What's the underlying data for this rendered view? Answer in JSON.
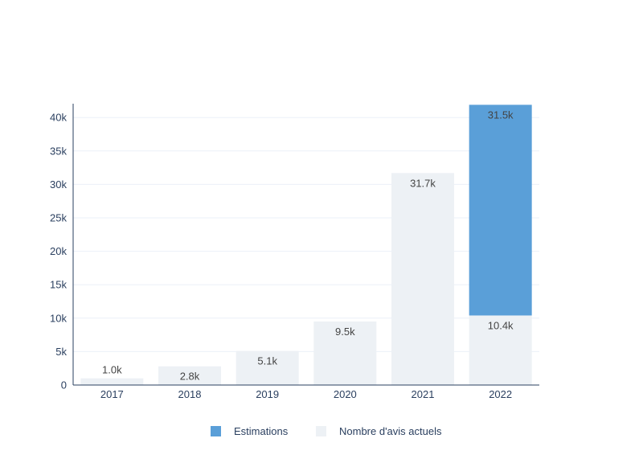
{
  "chart_data": {
    "type": "bar",
    "stacked": true,
    "categories": [
      "2017",
      "2018",
      "2019",
      "2020",
      "2021",
      "2022"
    ],
    "series": [
      {
        "name": "Nombre d'avis actuels",
        "values": [
          1000,
          2800,
          5100,
          9500,
          31700,
          10400
        ],
        "labels": [
          "1.0k",
          "2.8k",
          "5.1k",
          "9.5k",
          "31.7k",
          "10.4k"
        ],
        "color": "#edf1f5"
      },
      {
        "name": "Estimations",
        "values": [
          null,
          null,
          null,
          null,
          null,
          31500
        ],
        "labels": [
          "",
          "",
          "",
          "",
          "",
          "31.5k"
        ],
        "color": "#5a9fd8"
      }
    ],
    "y_ticks": [
      0,
      5000,
      10000,
      15000,
      20000,
      25000,
      30000,
      35000,
      40000
    ],
    "y_tick_labels": [
      "0",
      "5k",
      "10k",
      "15k",
      "20k",
      "25k",
      "30k",
      "35k",
      "40k"
    ],
    "ylim": [
      0,
      42000
    ],
    "grid": true,
    "legend_position": "bottom",
    "legend": [
      "Estimations",
      "Nombre d'avis actuels"
    ],
    "title": "",
    "xlabel": "",
    "ylabel": ""
  }
}
